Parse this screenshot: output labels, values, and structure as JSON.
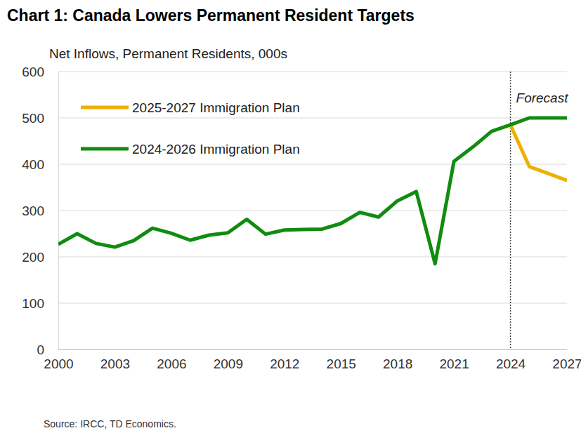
{
  "chart_data": {
    "type": "line",
    "title": "Chart 1: Canada Lowers Permanent Resident Targets",
    "subtitle": "Net Inflows, Permanent Residents, 000s",
    "source": "Source: IRCC, TD Economics.",
    "x": [
      2000,
      2001,
      2002,
      2003,
      2004,
      2005,
      2006,
      2007,
      2008,
      2009,
      2010,
      2011,
      2012,
      2013,
      2014,
      2015,
      2016,
      2017,
      2018,
      2019,
      2020,
      2021,
      2022,
      2023,
      2024,
      2025,
      2026,
      2027
    ],
    "series": [
      {
        "name": "2025-2027 Immigration Plan",
        "color": "#EDB100",
        "values": [
          null,
          null,
          null,
          null,
          null,
          null,
          null,
          null,
          null,
          null,
          null,
          null,
          null,
          null,
          null,
          null,
          null,
          null,
          null,
          null,
          null,
          null,
          null,
          null,
          485,
          395,
          380,
          365
        ]
      },
      {
        "name": "2024-2026 Immigration Plan",
        "color": "#108C10",
        "values": [
          227,
          250,
          229,
          221,
          235,
          262,
          251,
          236,
          247,
          252,
          281,
          249,
          258,
          259,
          260,
          272,
          296,
          286,
          321,
          341,
          185,
          406,
          437,
          471,
          485,
          500,
          500,
          500
        ]
      }
    ],
    "xlim": [
      2000,
      2027
    ],
    "xticks": [
      2000,
      2003,
      2006,
      2009,
      2012,
      2015,
      2018,
      2021,
      2024,
      2027
    ],
    "ylim": [
      0,
      600
    ],
    "yticks": [
      0,
      100,
      200,
      300,
      400,
      500,
      600
    ],
    "grid": true,
    "legend": "top-left",
    "annotations": [
      {
        "text": "Forecast",
        "x": 2024
      }
    ]
  }
}
